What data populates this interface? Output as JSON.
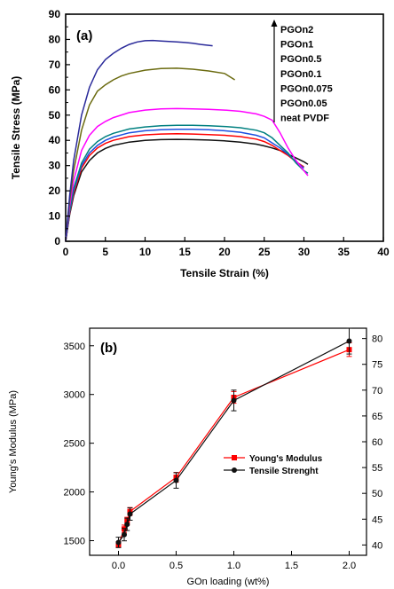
{
  "chart_data": [
    {
      "type": "line",
      "panel_label": "(a)",
      "xlabel": "Tensile Strain (%)",
      "ylabel": "Tensile Stress (MPa)",
      "xlim": [
        0,
        40
      ],
      "ylim": [
        0,
        90
      ],
      "xticks": [
        "0",
        "5",
        "10",
        "15",
        "20",
        "25",
        "30",
        "35",
        "40"
      ],
      "yticks": [
        "0",
        "10",
        "20",
        "30",
        "40",
        "50",
        "60",
        "70",
        "80",
        "90"
      ],
      "grid": false,
      "legend_placement": "top-right",
      "legend_order": [
        "PGOn2",
        "PGOn1",
        "PGOn0.5",
        "PGOn0.1",
        "PGOn0.075",
        "PGOn0.05",
        "neat PVDF"
      ],
      "series": [
        {
          "name": "PGOn2",
          "color": "#2a2a9a",
          "x": [
            0,
            0.5,
            1,
            2,
            3,
            4,
            5,
            6,
            7,
            8,
            9,
            10,
            11,
            12,
            13,
            14,
            15,
            16,
            17,
            18.5
          ],
          "y": [
            0,
            18,
            32,
            50,
            61,
            68,
            72,
            74.5,
            76.5,
            78,
            79,
            79.5,
            79.6,
            79.4,
            79.2,
            79,
            78.8,
            78.5,
            78,
            77.5
          ]
        },
        {
          "name": "PGOn1",
          "color": "#6b6b10",
          "x": [
            0,
            0.5,
            1,
            2,
            3,
            4,
            5,
            6,
            7,
            8,
            10,
            12,
            14,
            16,
            18,
            20,
            21.3
          ],
          "y": [
            0,
            16,
            28,
            44,
            54,
            59.5,
            62,
            64,
            65.5,
            66.5,
            67.8,
            68.5,
            68.6,
            68.2,
            67.5,
            66.5,
            64
          ]
        },
        {
          "name": "PGOn0.5",
          "color": "#ff00ff",
          "x": [
            0,
            0.5,
            1,
            2,
            3,
            4,
            5,
            6,
            8,
            10,
            12,
            14,
            16,
            18,
            20,
            22,
            24,
            25,
            26,
            27,
            28,
            29,
            30,
            30.5
          ],
          "y": [
            0,
            14,
            24,
            36,
            42,
            45.5,
            47.5,
            49,
            51,
            52,
            52.5,
            52.6,
            52.5,
            52.3,
            52,
            51.5,
            50.5,
            49.5,
            48,
            43,
            37,
            32,
            28,
            26
          ]
        },
        {
          "name": "PGOn0.1",
          "color": "#008080",
          "x": [
            0,
            0.5,
            1,
            2,
            3,
            4,
            5,
            6,
            8,
            10,
            12,
            14,
            16,
            18,
            20,
            22,
            24,
            25,
            26,
            27,
            28,
            29,
            30,
            30.5
          ],
          "y": [
            0,
            12,
            21,
            31,
            36.5,
            39.5,
            41.5,
            42.8,
            44.5,
            45.3,
            45.8,
            46,
            46,
            45.8,
            45.5,
            45,
            44,
            43,
            41,
            38,
            35,
            31,
            28,
            27
          ]
        },
        {
          "name": "PGOn0.075",
          "color": "#1e50e0",
          "x": [
            0,
            0.5,
            1,
            2,
            3,
            4,
            5,
            6,
            8,
            10,
            12,
            14,
            16,
            18,
            20,
            22,
            24,
            25,
            26,
            27,
            28,
            29,
            30
          ],
          "y": [
            0,
            11.5,
            20,
            30,
            35,
            38,
            40,
            41.3,
            43,
            43.8,
            44.2,
            44.4,
            44.4,
            44.2,
            43.8,
            43.2,
            42,
            41,
            39,
            37,
            34.5,
            31.5,
            29
          ]
        },
        {
          "name": "PGOn0.05",
          "color": "#ff0000",
          "x": [
            0,
            0.5,
            1,
            2,
            3,
            4,
            5,
            6,
            8,
            10,
            12,
            14,
            16,
            18,
            20,
            22,
            24,
            25,
            26,
            27,
            28,
            29,
            30
          ],
          "y": [
            0,
            11,
            19,
            29,
            34,
            37,
            38.8,
            40,
            41.5,
            42.2,
            42.5,
            42.6,
            42.5,
            42.3,
            42,
            41.5,
            40.5,
            39.5,
            38,
            36,
            34,
            31.5,
            29.5
          ]
        },
        {
          "name": "neat PVDF",
          "color": "#111111",
          "x": [
            0,
            0.5,
            1,
            2,
            3,
            4,
            5,
            6,
            8,
            10,
            12,
            14,
            16,
            18,
            20,
            22,
            24,
            25,
            26,
            27,
            28,
            29,
            30,
            30.5
          ],
          "y": [
            0,
            10.5,
            18,
            27.5,
            32,
            35,
            36.8,
            38,
            39.3,
            40,
            40.3,
            40.4,
            40.3,
            40.1,
            39.8,
            39.3,
            38.5,
            37.8,
            37,
            36,
            34.5,
            33,
            31.5,
            30.5
          ]
        }
      ]
    },
    {
      "type": "line",
      "panel_label": "(b)",
      "xlabel": "GOn loading (wt%)",
      "ylabel": "Young's Modulus (MPa)",
      "xlim": [
        -0.25,
        2.15
      ],
      "ylim": [
        1350,
        3680
      ],
      "y2lim": [
        38,
        82
      ],
      "xticks": [
        "0.0",
        "0.5",
        "1.0",
        "1.5",
        "2.0"
      ],
      "xtick_values": [
        0,
        0.5,
        1.0,
        1.5,
        2.0
      ],
      "yticks": [
        "1500",
        "2000",
        "2500",
        "3000",
        "3500"
      ],
      "ytick_values": [
        1500,
        2000,
        2500,
        3000,
        3500
      ],
      "y2ticks": [
        "40",
        "45",
        "50",
        "55",
        "60",
        "65",
        "70",
        "75",
        "80"
      ],
      "y2tick_values": [
        40,
        45,
        50,
        55,
        60,
        65,
        70,
        75,
        80
      ],
      "legend_placement": "center-right",
      "series": [
        {
          "name": "Young's Modulus",
          "axis": "left",
          "color": "#ff0000",
          "marker": "square",
          "x": [
            0,
            0.05,
            0.075,
            0.1,
            0.5,
            1.0,
            2.0
          ],
          "y": [
            1460,
            1620,
            1700,
            1800,
            2150,
            2970,
            3460
          ],
          "err": [
            30,
            40,
            40,
            40,
            50,
            60,
            70
          ]
        },
        {
          "name": "Tensile Strenght",
          "axis": "right",
          "color": "#111111",
          "marker": "circle",
          "x": [
            0,
            0.05,
            0.075,
            0.1,
            0.5,
            1.0,
            2.0
          ],
          "y": [
            40.5,
            42,
            44,
            46,
            52.5,
            68,
            79.5
          ],
          "err": [
            1,
            1.2,
            1.2,
            1.2,
            1.5,
            2,
            2.5
          ]
        }
      ]
    }
  ]
}
